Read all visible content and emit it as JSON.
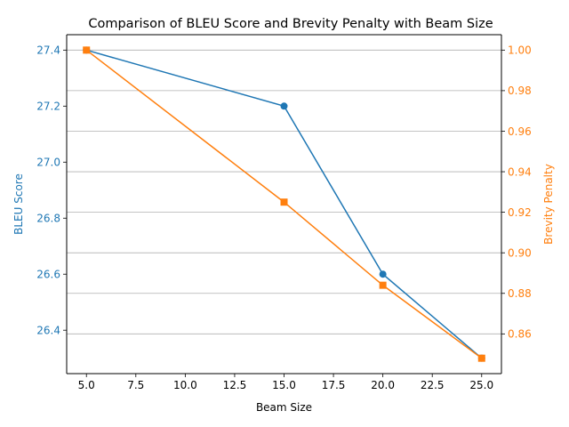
{
  "chart_data": {
    "type": "line",
    "title": "Comparison of BLEU Score and Brevity Penalty with Beam Size",
    "xlabel": "Beam Size",
    "x": [
      5,
      15,
      20,
      25
    ],
    "xlim": [
      4,
      26
    ],
    "xticks": [
      5.0,
      7.5,
      10.0,
      12.5,
      15.0,
      17.5,
      20.0,
      22.5,
      25.0
    ],
    "xtick_labels": [
      "5.0",
      "7.5",
      "10.0",
      "12.5",
      "15.0",
      "17.5",
      "20.0",
      "22.5",
      "25.0"
    ],
    "grid": "horizontal lines from right axis",
    "series": [
      {
        "name": "BLEU Score",
        "axis": "left",
        "color": "#1f77b4",
        "marker": "circle",
        "values": [
          27.4,
          27.2,
          26.6,
          26.3
        ]
      },
      {
        "name": "Brevity Penalty",
        "axis": "right",
        "color": "#ff7f0e",
        "marker": "square",
        "values": [
          1.0,
          0.925,
          0.884,
          0.848
        ]
      }
    ],
    "y_left": {
      "label": "BLEU Score",
      "color": "#1f77b4",
      "lim": [
        26.245,
        27.455
      ],
      "ticks": [
        26.4,
        26.6,
        26.8,
        27.0,
        27.2,
        27.4
      ],
      "tick_labels": [
        "26.4",
        "26.6",
        "26.8",
        "27.0",
        "27.2",
        "27.4"
      ]
    },
    "y_right": {
      "label": "Brevity Penalty",
      "color": "#ff7f0e",
      "lim": [
        0.8404,
        1.0076
      ],
      "ticks": [
        0.86,
        0.88,
        0.9,
        0.92,
        0.94,
        0.96,
        0.98,
        1.0
      ],
      "tick_labels": [
        "0.86",
        "0.88",
        "0.90",
        "0.92",
        "0.94",
        "0.96",
        "0.98",
        "1.00"
      ]
    }
  }
}
